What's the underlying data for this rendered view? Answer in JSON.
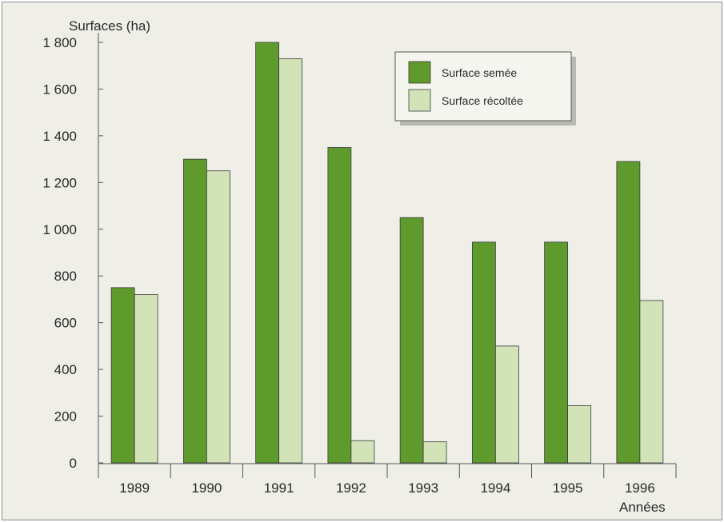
{
  "chart_data": {
    "type": "bar",
    "title": "",
    "ylabel": "Surfaces (ha)",
    "xlabel": "Années",
    "ylim": [
      0,
      1800
    ],
    "yticks": [
      0,
      200,
      400,
      600,
      800,
      1000,
      1200,
      1400,
      1600,
      1800
    ],
    "ytick_labels": [
      "0",
      "200",
      "400",
      "600",
      "800",
      "1 000",
      "1 200",
      "1 400",
      "1 600",
      "1 800"
    ],
    "categories": [
      "1989",
      "1990",
      "1991",
      "1992",
      "1993",
      "1994",
      "1995",
      "1996"
    ],
    "series": [
      {
        "name": "Surface semée",
        "color": "#5f9a2c",
        "values": [
          750,
          1300,
          1800,
          1350,
          1050,
          945,
          945,
          1290
        ]
      },
      {
        "name": "Surface récoltée",
        "color": "#d3e3b8",
        "values": [
          720,
          1250,
          1730,
          95,
          90,
          500,
          245,
          695
        ]
      }
    ],
    "legend_position": "top-right",
    "grid": false
  }
}
